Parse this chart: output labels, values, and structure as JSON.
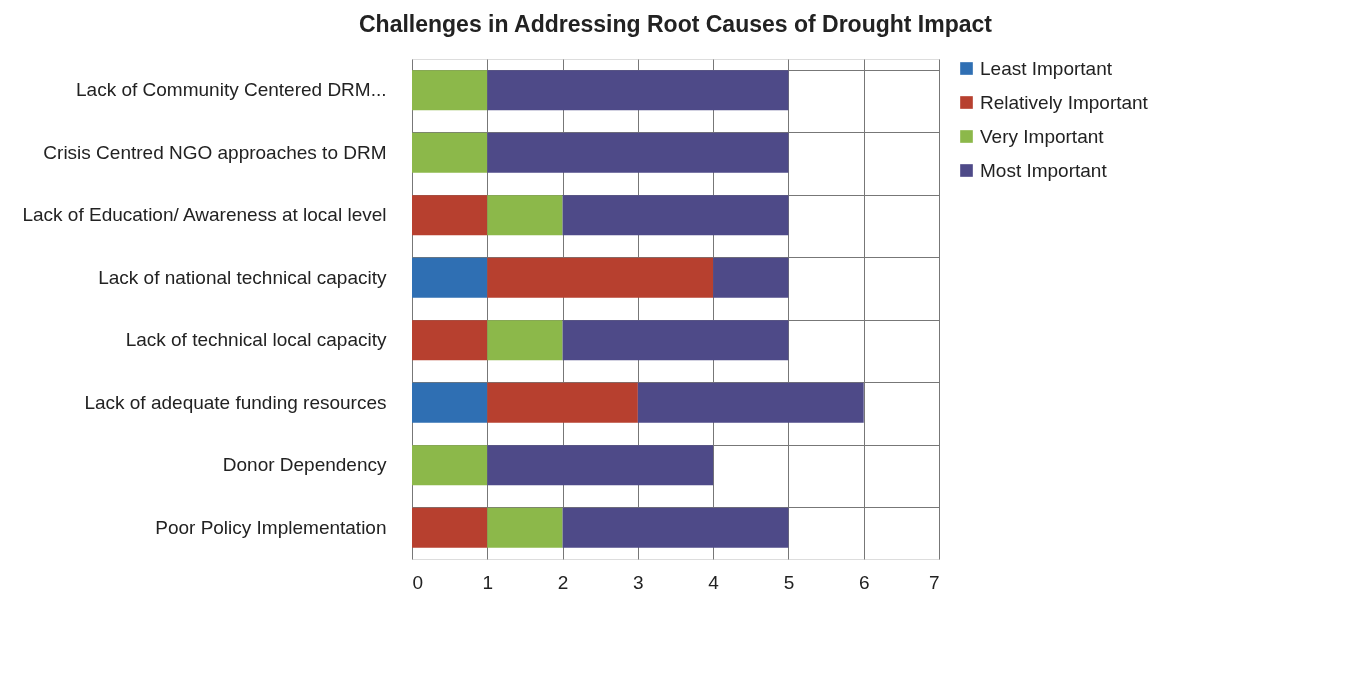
{
  "chart_data": {
    "type": "bar",
    "orientation": "horizontal",
    "stacked": true,
    "title": "Challenges in Addressing Root Causes of Drought Impact",
    "categories": [
      "Lack of Community Centered DRM...",
      "Crisis Centred NGO approaches to DRM",
      "Lack of Education/ Awareness at local level",
      "Lack of national technical capacity",
      "Lack of technical local capacity",
      "Lack of adequate funding resources",
      "Donor Dependency",
      "Poor Policy Implementation"
    ],
    "series": [
      {
        "name": "Least Important",
        "color": "#2f6fb3",
        "values": [
          null,
          null,
          null,
          1,
          null,
          1,
          null,
          null
        ]
      },
      {
        "name": "Relatively Important",
        "color": "#b7402f",
        "values": [
          null,
          null,
          1,
          3,
          1,
          2,
          null,
          1
        ]
      },
      {
        "name": "Very Important",
        "color": "#8cb84a",
        "values": [
          1,
          1,
          1,
          null,
          1,
          null,
          1,
          1
        ]
      },
      {
        "name": "Most Important",
        "color": "#4e4a88",
        "values": [
          4,
          4,
          3,
          1,
          3,
          3,
          3,
          3
        ]
      }
    ],
    "xlim": [
      0,
      7
    ],
    "xticks": [
      0,
      1,
      2,
      3,
      4,
      5,
      6,
      7
    ],
    "grid": true,
    "legend": "right"
  }
}
